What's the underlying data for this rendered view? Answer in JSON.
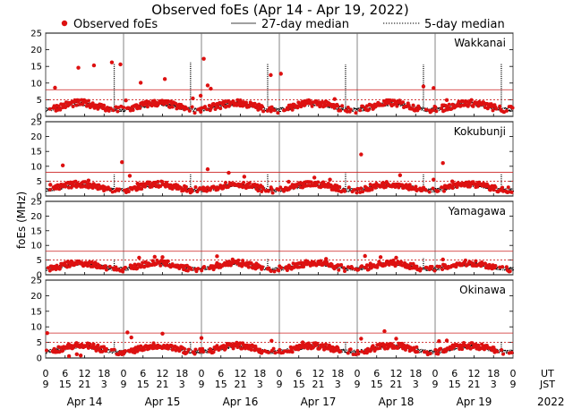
{
  "chart_data": {
    "type": "scatter",
    "title": "Observed foEs (Apr 14 - Apr 19, 2022)",
    "ylabel": "foEs (MHz)",
    "ylim": [
      0,
      25
    ],
    "yticks": [
      0,
      5,
      10,
      15,
      20,
      25
    ],
    "xlim_days": [
      0,
      6
    ],
    "year_label": "2022",
    "axis_labels": {
      "ut": "UT",
      "jst": "JST"
    },
    "ut_ticks": [
      "0",
      "6",
      "12",
      "18",
      "0",
      "6",
      "12",
      "18",
      "0",
      "6",
      "12",
      "18",
      "0",
      "6",
      "12",
      "18",
      "0",
      "6",
      "12",
      "18",
      "0",
      "6",
      "12",
      "18",
      "0"
    ],
    "jst_ticks": [
      "9",
      "15",
      "21",
      "3",
      "9",
      "15",
      "21",
      "3",
      "9",
      "15",
      "21",
      "3",
      "9",
      "15",
      "21",
      "3",
      "9",
      "15",
      "21",
      "3",
      "9",
      "15",
      "21",
      "3",
      "9"
    ],
    "date_labels": [
      "Apr 14",
      "Apr 15",
      "Apr 16",
      "Apr 17",
      "Apr 18",
      "Apr 19"
    ],
    "legend": [
      {
        "name": "Observed foEs",
        "kind": "marker",
        "color": "#dd1111"
      },
      {
        "name": "27-day median",
        "kind": "solid-line",
        "color": "#000000"
      },
      {
        "name": "5-day median",
        "kind": "dotted-line",
        "color": "#000000"
      }
    ],
    "reference_lines": {
      "upper": 8,
      "lower": 5,
      "color": "#cc2222"
    },
    "panels": [
      {
        "station": "Wakkanai",
        "baseline": 3.0,
        "observed_outliers": [
          [
            0.12,
            8.6
          ],
          [
            0.42,
            14.6
          ],
          [
            0.62,
            15.3
          ],
          [
            0.85,
            16.2
          ],
          [
            0.96,
            15.6
          ],
          [
            1.03,
            4.8
          ],
          [
            1.22,
            10.1
          ],
          [
            1.53,
            11.2
          ],
          [
            1.89,
            5.4
          ],
          [
            1.99,
            6.2
          ],
          [
            2.03,
            17.3
          ],
          [
            2.08,
            9.3
          ],
          [
            2.12,
            8.3
          ],
          [
            2.5,
            4.8
          ],
          [
            2.89,
            12.4
          ],
          [
            3.02,
            12.8
          ],
          [
            3.71,
            5.2
          ],
          [
            4.85,
            9.0
          ],
          [
            4.98,
            8.5
          ],
          [
            5.15,
            4.9
          ]
        ],
        "spikes_5day": [
          [
            0.88,
            16.0
          ],
          [
            1.86,
            16.2
          ],
          [
            2.85,
            15.8
          ],
          [
            3.85,
            15.6
          ],
          [
            4.85,
            15.6
          ],
          [
            5.85,
            15.8
          ]
        ]
      },
      {
        "station": "Kokubunji",
        "baseline": 3.0,
        "observed_outliers": [
          [
            0.06,
            3.8
          ],
          [
            0.22,
            10.3
          ],
          [
            0.55,
            5.2
          ],
          [
            0.98,
            11.4
          ],
          [
            1.08,
            6.8
          ],
          [
            1.18,
            4.2
          ],
          [
            2.08,
            9.0
          ],
          [
            2.35,
            7.8
          ],
          [
            2.55,
            6.5
          ],
          [
            3.12,
            4.8
          ],
          [
            3.45,
            6.2
          ],
          [
            3.65,
            5.5
          ],
          [
            4.05,
            14.0
          ],
          [
            4.55,
            7.0
          ],
          [
            4.98,
            5.5
          ],
          [
            5.1,
            11.1
          ],
          [
            5.22,
            4.9
          ]
        ],
        "spikes_5day": [
          [
            0.88,
            7.2
          ],
          [
            1.86,
            7.5
          ],
          [
            2.85,
            7.4
          ],
          [
            3.85,
            7.8
          ],
          [
            4.85,
            7.6
          ],
          [
            5.85,
            7.5
          ]
        ]
      },
      {
        "station": "Yamagawa",
        "baseline": 3.0,
        "observed_outliers": [
          [
            0.18,
            2.0
          ],
          [
            1.2,
            5.8
          ],
          [
            1.4,
            6.1
          ],
          [
            1.5,
            6.0
          ],
          [
            2.2,
            6.3
          ],
          [
            2.4,
            5.2
          ],
          [
            3.6,
            5.4
          ],
          [
            4.1,
            6.4
          ],
          [
            4.3,
            6.0
          ],
          [
            4.5,
            5.8
          ],
          [
            5.1,
            5.2
          ]
        ],
        "spikes_5day": [
          [
            0.88,
            5.2
          ],
          [
            2.85,
            5.6
          ],
          [
            4.85,
            5.8
          ]
        ]
      },
      {
        "station": "Okinawa",
        "baseline": 3.0,
        "observed_outliers": [
          [
            0.02,
            8.0
          ],
          [
            0.3,
            0.6
          ],
          [
            0.4,
            1.2
          ],
          [
            0.45,
            0.8
          ],
          [
            1.05,
            8.2
          ],
          [
            1.1,
            6.6
          ],
          [
            1.5,
            7.8
          ],
          [
            2.0,
            6.4
          ],
          [
            2.9,
            5.5
          ],
          [
            3.3,
            5.0
          ],
          [
            4.05,
            6.2
          ],
          [
            4.35,
            8.6
          ],
          [
            4.5,
            6.2
          ],
          [
            5.05,
            5.4
          ],
          [
            5.15,
            5.6
          ]
        ],
        "spikes_5day": [
          [
            0.88,
            5.6
          ],
          [
            1.86,
            5.2
          ],
          [
            3.85,
            5.5
          ],
          [
            5.85,
            5.5
          ]
        ]
      }
    ]
  }
}
